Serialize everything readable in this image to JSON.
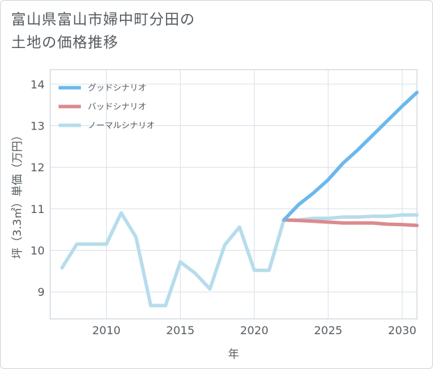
{
  "chart_data": {
    "type": "line",
    "title_lines": [
      "富山県富山市婦中町分田の",
      "土地の価格推移"
    ],
    "xlabel": "年",
    "ylabel": "坪（3.3㎡）単価（万円）",
    "xlim": [
      2006.2,
      2031
    ],
    "ylim": [
      8.35,
      14.35
    ],
    "xticks": [
      2010,
      2015,
      2020,
      2025,
      2030
    ],
    "yticks": [
      9,
      10,
      11,
      12,
      13,
      14
    ],
    "grid": true,
    "legend_position": "top-left",
    "series": [
      {
        "name": "グッドシナリオ",
        "color": "#6bb8ec",
        "x": [
          2022,
          2023,
          2024,
          2025,
          2026,
          2027,
          2028,
          2029,
          2030,
          2031
        ],
        "y": [
          10.73,
          11.1,
          11.38,
          11.7,
          12.1,
          12.42,
          12.77,
          13.12,
          13.47,
          13.8
        ]
      },
      {
        "name": "バッドシナリオ",
        "color": "#dc8a8e",
        "x": [
          2022,
          2023,
          2024,
          2025,
          2026,
          2027,
          2028,
          2029,
          2030,
          2031
        ],
        "y": [
          10.73,
          10.72,
          10.7,
          10.68,
          10.66,
          10.66,
          10.66,
          10.63,
          10.62,
          10.6
        ]
      },
      {
        "name": "ノーマルシナリオ",
        "color": "#b7dcec",
        "x": [
          2007,
          2008,
          2009,
          2010,
          2011,
          2012,
          2013,
          2014,
          2015,
          2016,
          2017,
          2018,
          2019,
          2020,
          2021,
          2022,
          2023,
          2024,
          2025,
          2026,
          2027,
          2028,
          2029,
          2030,
          2031
        ],
        "y": [
          9.58,
          10.15,
          10.15,
          10.15,
          10.9,
          10.32,
          8.67,
          8.67,
          9.72,
          9.45,
          9.07,
          10.13,
          10.56,
          9.52,
          9.52,
          10.73,
          10.73,
          10.77,
          10.77,
          10.8,
          10.8,
          10.82,
          10.82,
          10.85,
          10.85
        ]
      }
    ]
  }
}
